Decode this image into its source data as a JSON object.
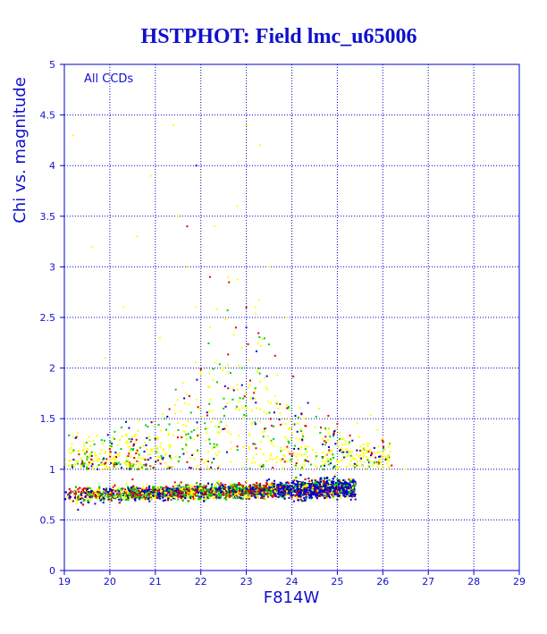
{
  "chart_data": {
    "type": "scatter",
    "title": "HSTPHOT: Field lmc_u65006",
    "xlabel": "F814W",
    "ylabel": "Chi vs. magnitude",
    "annotation": "All CCDs",
    "xlim": [
      19,
      29
    ],
    "ylim": [
      0,
      5
    ],
    "xticks": [
      19,
      20,
      21,
      22,
      23,
      24,
      25,
      26,
      27,
      28,
      29
    ],
    "yticks": [
      0,
      0.5,
      1,
      1.5,
      2,
      2.5,
      3,
      3.5,
      4,
      4.5,
      5
    ],
    "grid": true,
    "series": [
      {
        "color": "#ffff00",
        "x": [
          19.2,
          19.6,
          19.9,
          20.3,
          20.6,
          20.9,
          21.1,
          21.4,
          21.5,
          21.7,
          21.9,
          22.0,
          22.2,
          22.3,
          22.5,
          22.6,
          22.7,
          22.8,
          22.9,
          23.0,
          23.1,
          23.2,
          23.3,
          23.4,
          23.5,
          23.7,
          23.9,
          24.2,
          24.6,
          25.1,
          25.6,
          26.1,
          26.5
        ],
        "y": [
          4.3,
          3.2,
          2.1,
          2.6,
          3.3,
          3.9,
          2.3,
          4.4,
          3.5,
          3.0,
          2.6,
          3.9,
          2.4,
          3.4,
          2.0,
          2.9,
          1.8,
          3.6,
          2.2,
          4.4,
          1.7,
          2.6,
          4.2,
          1.9,
          3.0,
          1.6,
          2.5,
          1.4,
          1.6,
          1.3,
          1.2,
          1.1,
          1.0
        ]
      },
      {
        "color": "#00cc00",
        "x": [
          19.5,
          20.1,
          20.6,
          21.2,
          21.6,
          22.1,
          22.5,
          22.9,
          23.2,
          23.6,
          24.0,
          24.3,
          24.7,
          25.0
        ],
        "y": [
          1.1,
          1.3,
          1.0,
          1.5,
          1.2,
          1.4,
          1.6,
          2.0,
          1.8,
          1.3,
          1.1,
          1.2,
          1.0,
          0.9
        ]
      },
      {
        "color": "#e00000",
        "x": [
          19.4,
          20.0,
          20.5,
          21.0,
          21.7,
          22.2,
          22.6,
          23.0,
          23.4,
          23.8,
          24.3,
          24.8
        ],
        "y": [
          0.8,
          1.2,
          0.9,
          1.3,
          3.4,
          2.9,
          1.8,
          2.6,
          1.4,
          1.1,
          0.9,
          0.8
        ]
      },
      {
        "color": "#0000cc",
        "x": [
          19.3,
          20.2,
          21.0,
          21.9,
          22.4,
          23.0,
          23.5,
          24.0,
          24.5,
          25.0,
          25.3
        ],
        "y": [
          0.6,
          0.7,
          0.8,
          4.0,
          0.8,
          2.4,
          0.9,
          0.8,
          0.8,
          0.7,
          0.7
        ]
      }
    ],
    "density_band": {
      "x_range": [
        19,
        25.4
      ],
      "description_points": [
        {
          "x": 19.5,
          "y_center": 0.72
        },
        {
          "x": 21.0,
          "y_center": 0.75
        },
        {
          "x": 22.5,
          "y_center": 0.78
        },
        {
          "x": 24.0,
          "y_center": 0.8
        },
        {
          "x": 25.3,
          "y_center": 0.78
        }
      ]
    }
  }
}
